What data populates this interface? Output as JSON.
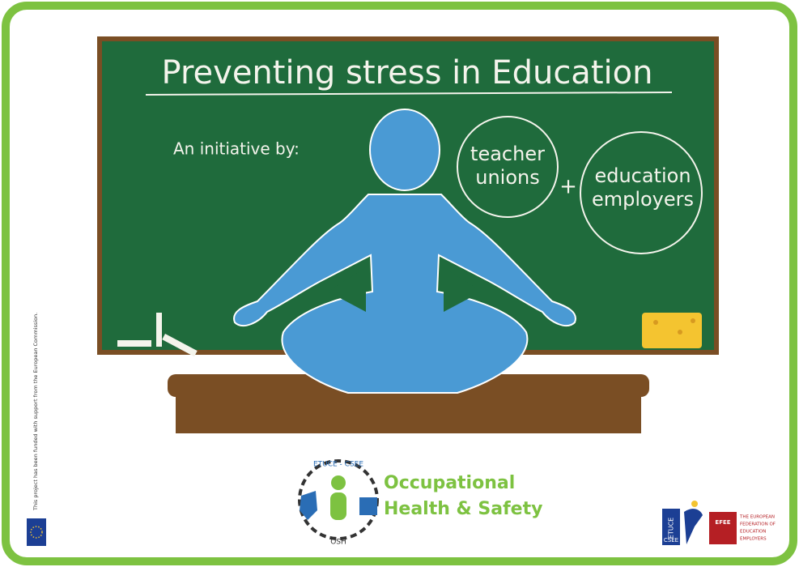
{
  "poster": {
    "title": "Preventing stress in Education",
    "intro": "An initiative by:",
    "partners": [
      {
        "lines": [
          "teacher",
          "unions"
        ]
      },
      {
        "lines": [
          "education",
          "employers"
        ]
      }
    ],
    "plus": "+",
    "logo": {
      "ring_top": "ETUCE - CSEE",
      "ring_bottom": "OSH",
      "lines": [
        "Occupational",
        "Health & Safety"
      ]
    },
    "disclaimer": "This project has been funded with support from the European Commission.",
    "etuce_logo": [
      "ETUCE",
      "CSEE"
    ],
    "efee_logo": {
      "abbr": "EFEE",
      "lines": [
        "THE EUROPEAN",
        "FEDERATION OF",
        "EDUCATION",
        "EMPLOYERS"
      ]
    }
  }
}
